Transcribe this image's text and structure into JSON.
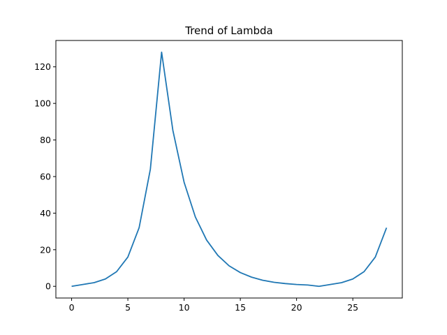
{
  "chart_data": {
    "type": "line",
    "title": "Trend of Lambda",
    "xlabel": "",
    "ylabel": "",
    "grid": false,
    "legend": "none",
    "xlim": [
      -1.4,
      29.4
    ],
    "ylim": [
      -6.4,
      134.4
    ],
    "xticks": [
      0,
      5,
      10,
      15,
      20,
      25
    ],
    "yticks": [
      0,
      20,
      40,
      60,
      80,
      100,
      120
    ],
    "series": [
      {
        "color": "#1f77b4",
        "x": [
          0,
          1,
          2,
          3,
          4,
          5,
          6,
          7,
          8,
          9,
          10,
          11,
          12,
          13,
          14,
          15,
          16,
          17,
          18,
          19,
          20,
          21,
          22,
          23,
          24,
          25,
          26,
          27,
          28
        ],
        "values": [
          0,
          1,
          2,
          4,
          8,
          16,
          32,
          64,
          128,
          85.3,
          56.9,
          37.9,
          25.3,
          16.9,
          11.2,
          7.5,
          5.0,
          3.3,
          2.2,
          1.5,
          1.0,
          0.7,
          0,
          1,
          2,
          4,
          8,
          16,
          32
        ]
      }
    ]
  }
}
